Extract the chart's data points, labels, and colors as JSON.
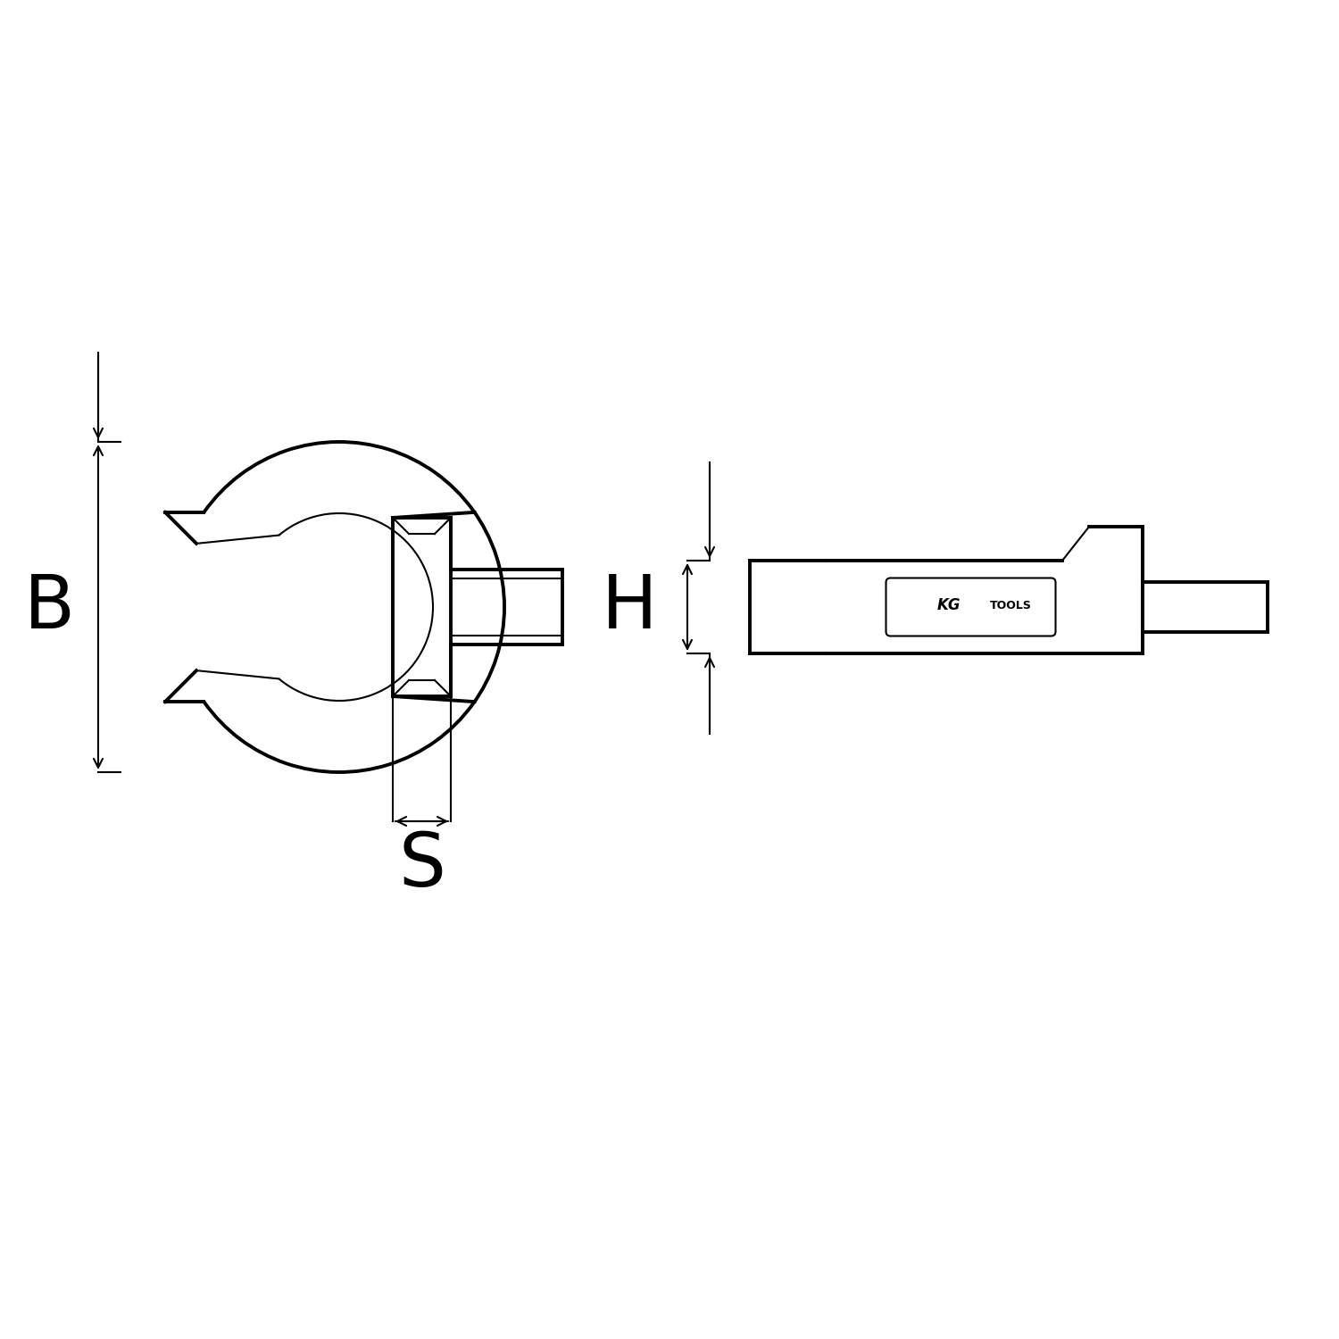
{
  "bg_color": "#ffffff",
  "line_color": "#000000",
  "lw_thick": 2.8,
  "lw_thin": 1.5,
  "fig_width": 15.0,
  "fig_height": 15.0,
  "label_B": "B",
  "label_S": "S",
  "label_H": "H",
  "font_size_labels": 60,
  "font_size_logo": 13,
  "arrow_mutation_scale": 18
}
